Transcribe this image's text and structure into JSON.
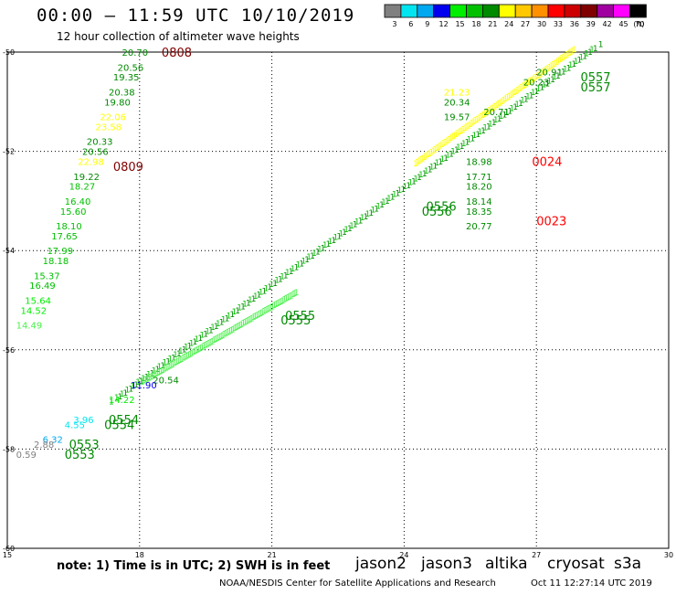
{
  "header": {
    "title": "00:00 – 11:59 UTC 10/10/2019",
    "subtitle": "12 hour collection of altimeter wave heights"
  },
  "legend": {
    "unit": "(ft)",
    "bins": [
      {
        "label": "3",
        "color": "#808080"
      },
      {
        "label": "6",
        "color": "#00e5f0"
      },
      {
        "label": "9",
        "color": "#00a8f0"
      },
      {
        "label": "12",
        "color": "#0000ee"
      },
      {
        "label": "15",
        "color": "#00ee00"
      },
      {
        "label": "18",
        "color": "#00c000"
      },
      {
        "label": "21",
        "color": "#008a00"
      },
      {
        "label": "24",
        "color": "#ffff00"
      },
      {
        "label": "27",
        "color": "#ffc800"
      },
      {
        "label": "30",
        "color": "#ff9000"
      },
      {
        "label": "33",
        "color": "#ff0000"
      },
      {
        "label": "36",
        "color": "#cc0000"
      },
      {
        "label": "39",
        "color": "#800000"
      },
      {
        "label": "42",
        "color": "#a000a0"
      },
      {
        "label": "45",
        "color": "#ff00ff"
      },
      {
        "label": "70",
        "color": "#000000"
      }
    ]
  },
  "axes": {
    "lat_ticks": [
      "-50",
      "-52",
      "-54",
      "-56",
      "-58",
      "-60"
    ],
    "lon_ticks": [
      "15",
      "18",
      "21",
      "24",
      "27",
      "30"
    ],
    "lat_range": [
      -60,
      -50
    ],
    "lon_range": [
      15,
      30
    ]
  },
  "chart_data": {
    "type": "scatter",
    "xlabel": "",
    "ylabel": "",
    "xlim": [
      15,
      30
    ],
    "ylim": [
      -60,
      -50
    ],
    "swh_labels": [
      {
        "text": "20.70",
        "lon": 17.6,
        "lat": -50.0,
        "color": "#008a00"
      },
      {
        "text": "20.56",
        "lon": 17.5,
        "lat": -50.3,
        "color": "#008a00"
      },
      {
        "text": "19.35",
        "lon": 17.4,
        "lat": -50.5,
        "color": "#008a00"
      },
      {
        "text": "20.38",
        "lon": 17.3,
        "lat": -50.8,
        "color": "#008a00"
      },
      {
        "text": "19.80",
        "lon": 17.2,
        "lat": -51.0,
        "color": "#008a00"
      },
      {
        "text": "22.06",
        "lon": 17.1,
        "lat": -51.3,
        "color": "#ffff00"
      },
      {
        "text": "23.58",
        "lon": 17.0,
        "lat": -51.5,
        "color": "#ffff00"
      },
      {
        "text": "20.33",
        "lon": 16.8,
        "lat": -51.8,
        "color": "#008a00"
      },
      {
        "text": "20.56",
        "lon": 16.7,
        "lat": -52.0,
        "color": "#008a00"
      },
      {
        "text": "22.98",
        "lon": 16.6,
        "lat": -52.2,
        "color": "#ffff00"
      },
      {
        "text": "19.22",
        "lon": 16.5,
        "lat": -52.5,
        "color": "#008a00"
      },
      {
        "text": "18.27",
        "lon": 16.4,
        "lat": -52.7,
        "color": "#00c000"
      },
      {
        "text": "16.40",
        "lon": 16.3,
        "lat": -53.0,
        "color": "#00c000"
      },
      {
        "text": "15.60",
        "lon": 16.2,
        "lat": -53.2,
        "color": "#00c000"
      },
      {
        "text": "18.10",
        "lon": 16.1,
        "lat": -53.5,
        "color": "#00c000"
      },
      {
        "text": "17.65",
        "lon": 16.0,
        "lat": -53.7,
        "color": "#00c000"
      },
      {
        "text": "17.99",
        "lon": 15.9,
        "lat": -54.0,
        "color": "#00c000"
      },
      {
        "text": "18.18",
        "lon": 15.8,
        "lat": -54.2,
        "color": "#00c000"
      },
      {
        "text": "15.37",
        "lon": 15.6,
        "lat": -54.5,
        "color": "#00c000"
      },
      {
        "text": "16.49",
        "lon": 15.5,
        "lat": -54.7,
        "color": "#00c000"
      },
      {
        "text": "15.64",
        "lon": 15.4,
        "lat": -55.0,
        "color": "#00ee00"
      },
      {
        "text": "14.52",
        "lon": 15.3,
        "lat": -55.2,
        "color": "#00ee00"
      },
      {
        "text": "14.49",
        "lon": 15.2,
        "lat": -55.5,
        "color": "#4af04a"
      },
      {
        "text": "21.23",
        "lon": 24.9,
        "lat": -50.8,
        "color": "#ffff00"
      },
      {
        "text": "20.34",
        "lon": 24.9,
        "lat": -51.0,
        "color": "#008a00"
      },
      {
        "text": "19.57",
        "lon": 24.9,
        "lat": -51.3,
        "color": "#008a00"
      },
      {
        "text": "20.71",
        "lon": 25.8,
        "lat": -51.2,
        "color": "#008a00"
      },
      {
        "text": "18.98",
        "lon": 25.4,
        "lat": -52.2,
        "color": "#008a00"
      },
      {
        "text": "17.71",
        "lon": 25.4,
        "lat": -52.5,
        "color": "#008a00"
      },
      {
        "text": "18.20",
        "lon": 25.4,
        "lat": -52.7,
        "color": "#008a00"
      },
      {
        "text": "18.14",
        "lon": 25.4,
        "lat": -53.0,
        "color": "#008a00"
      },
      {
        "text": "18.35",
        "lon": 25.4,
        "lat": -53.2,
        "color": "#008a00"
      },
      {
        "text": "20.77",
        "lon": 25.4,
        "lat": -53.5,
        "color": "#008a00"
      },
      {
        "text": "20.91",
        "lon": 27.0,
        "lat": -50.4,
        "color": "#008a00"
      },
      {
        "text": "20.23",
        "lon": 26.7,
        "lat": -50.6,
        "color": "#008a00"
      },
      {
        "text": "20.54",
        "lon": 18.3,
        "lat": -56.6,
        "color": "#008a00"
      },
      {
        "text": "11.90",
        "lon": 17.8,
        "lat": -56.7,
        "color": "#0000ee"
      },
      {
        "text": "14.22",
        "lon": 17.3,
        "lat": -57.0,
        "color": "#00ee00"
      },
      {
        "text": "3.96",
        "lon": 16.5,
        "lat": -57.4,
        "color": "#00e5f0"
      },
      {
        "text": "4.55",
        "lon": 16.3,
        "lat": -57.5,
        "color": "#00e5f0"
      },
      {
        "text": "6.32",
        "lon": 15.8,
        "lat": -57.8,
        "color": "#00a8f0"
      },
      {
        "text": "2.88",
        "lon": 15.6,
        "lat": -57.9,
        "color": "#808080"
      },
      {
        "text": "0.59",
        "lon": 15.2,
        "lat": -58.1,
        "color": "#808080"
      }
    ],
    "time_labels": [
      {
        "text": "0808",
        "lon": 18.5,
        "lat": -50.0,
        "color": "#800000"
      },
      {
        "text": "0809",
        "lon": 17.4,
        "lat": -52.3,
        "color": "#800000"
      },
      {
        "text": "0024",
        "lon": 26.9,
        "lat": -52.2,
        "color": "#ff0000"
      },
      {
        "text": "0023",
        "lon": 27.0,
        "lat": -53.4,
        "color": "#ff0000"
      },
      {
        "text": "0557",
        "lon": 28.0,
        "lat": -50.5,
        "color": "#008a00"
      },
      {
        "text": "0557",
        "lon": 28.0,
        "lat": -50.7,
        "color": "#008a00"
      },
      {
        "text": "0556",
        "lon": 24.5,
        "lat": -53.1,
        "color": "#008a00"
      },
      {
        "text": "0556",
        "lon": 24.4,
        "lat": -53.2,
        "color": "#008a00"
      },
      {
        "text": "0555",
        "lon": 21.3,
        "lat": -55.3,
        "color": "#008a00"
      },
      {
        "text": "0555",
        "lon": 21.2,
        "lat": -55.4,
        "color": "#008a00"
      },
      {
        "text": "0554",
        "lon": 17.3,
        "lat": -57.4,
        "color": "#008a00"
      },
      {
        "text": "0554",
        "lon": 17.2,
        "lat": -57.5,
        "color": "#008a00"
      },
      {
        "text": "0553",
        "lon": 16.4,
        "lat": -57.9,
        "color": "#008a00"
      },
      {
        "text": "0553",
        "lon": 16.3,
        "lat": -58.1,
        "color": "#008a00"
      }
    ],
    "tracks": [
      {
        "from": [
          17.3,
          -57.1
        ],
        "to": [
          28.2,
          -50.0
        ],
        "color": "#00c000"
      },
      {
        "from": [
          17.5,
          -57.0
        ],
        "to": [
          28.4,
          -49.9
        ],
        "color": "#008a00"
      },
      {
        "from": [
          24.2,
          -52.3
        ],
        "to": [
          27.8,
          -50.0
        ],
        "color": "#ffff00"
      },
      {
        "from": [
          18.0,
          -56.7
        ],
        "to": [
          21.5,
          -54.9
        ],
        "color": "#4af04a"
      }
    ]
  },
  "footer": {
    "note": "note: 1) Time is in UTC; 2) SWH is in feet",
    "satellites": [
      {
        "name": "jason2",
        "color": "#0000ee"
      },
      {
        "name": "jason3",
        "color": "#008a00"
      },
      {
        "name": "altika",
        "color": "#ff9000"
      },
      {
        "name": "cryosat",
        "color": "#ff0000"
      },
      {
        "name": "s3a",
        "color": "#cc0000"
      }
    ],
    "credit_left": "NOAA/NESDIS Center for Satellite Applications and Research",
    "credit_right": "Oct 11 12:27:14 UTC 2019"
  }
}
